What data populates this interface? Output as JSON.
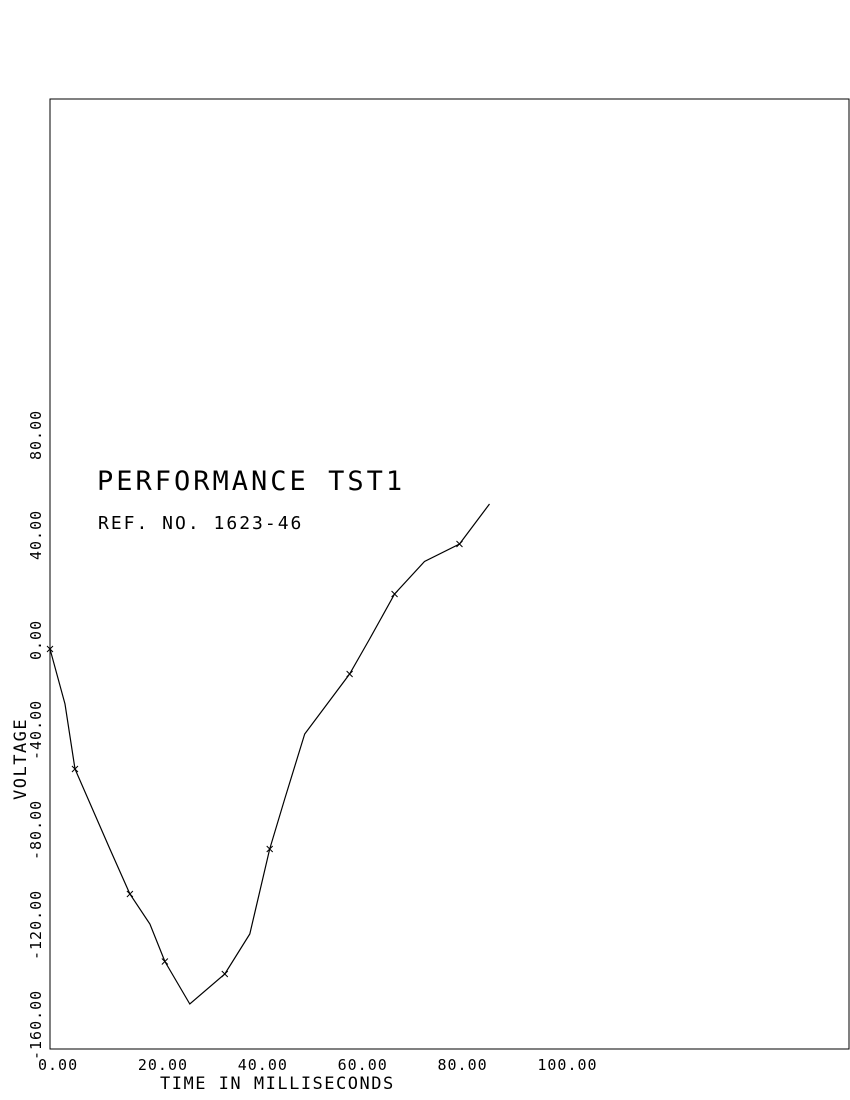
{
  "chart_data": {
    "type": "line",
    "title": "PERFORMANCE TST1",
    "subtitle": "REF. NO. 1623-46",
    "xlabel": "TIME IN MILLISECONDS",
    "ylabel": "VOLTAGE",
    "xlim": [
      0,
      160
    ],
    "ylim": [
      -160,
      220
    ],
    "x_ticks": [
      "0.00",
      "20.00",
      "40.00",
      "60.00",
      "80.00",
      "100.00"
    ],
    "x_tick_values": [
      0,
      20,
      40,
      60,
      80,
      100
    ],
    "y_ticks": [
      "-160.00",
      "-120.00",
      "-80.00",
      "-40.00",
      "0.00",
      "40.00",
      "80.00"
    ],
    "y_tick_values": [
      -160,
      -120,
      -80,
      -40,
      0,
      40,
      80
    ],
    "grid": false,
    "series": [
      {
        "values_xy": [
          [
            0,
            0
          ],
          [
            3,
            -22
          ],
          [
            5,
            -48
          ],
          [
            12,
            -80
          ],
          [
            16,
            -98
          ],
          [
            20,
            -110
          ],
          [
            23,
            -125
          ],
          [
            28,
            -142
          ],
          [
            35,
            -130
          ],
          [
            40,
            -114
          ],
          [
            44,
            -80
          ],
          [
            47,
            -60
          ],
          [
            51,
            -34
          ],
          [
            60,
            -10
          ],
          [
            64,
            4
          ],
          [
            69,
            22
          ],
          [
            75,
            35
          ],
          [
            82,
            42
          ],
          [
            88,
            58
          ]
        ],
        "markers_xy": [
          [
            0,
            0
          ],
          [
            5,
            -48
          ],
          [
            16,
            -98
          ],
          [
            23,
            -125
          ],
          [
            35,
            -130
          ],
          [
            44,
            -80
          ],
          [
            60,
            -10
          ],
          [
            69,
            22
          ],
          [
            82,
            42
          ]
        ],
        "color": "#000000"
      }
    ]
  }
}
